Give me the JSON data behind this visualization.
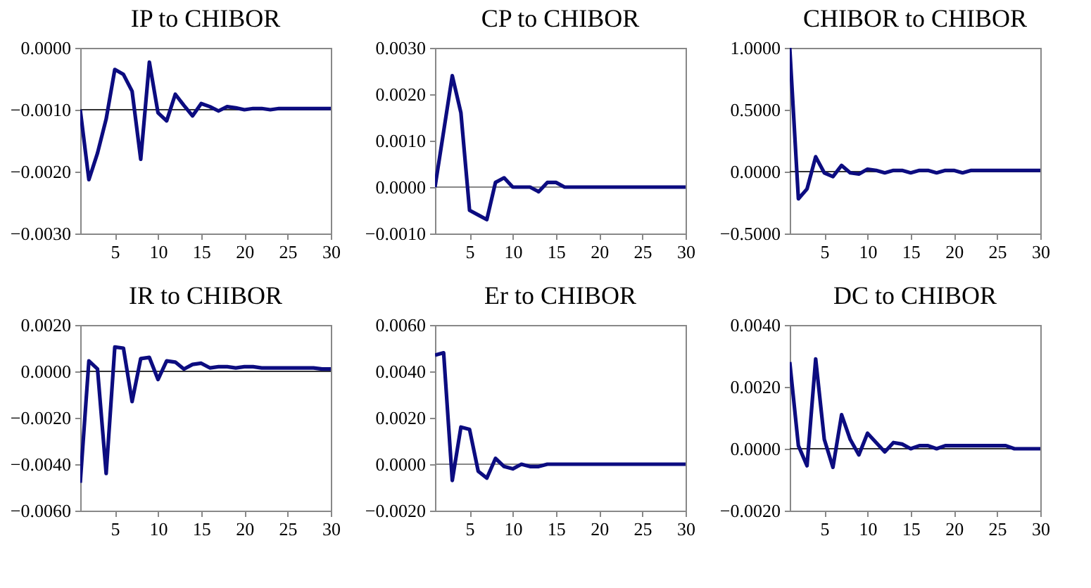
{
  "chart_data": [
    {
      "type": "line",
      "title": "IP to CHIBOR",
      "x": [
        1,
        2,
        3,
        4,
        5,
        6,
        7,
        8,
        9,
        10,
        11,
        12,
        13,
        14,
        15,
        16,
        17,
        18,
        19,
        20,
        21,
        22,
        23,
        24,
        25,
        26,
        27,
        28,
        29,
        30
      ],
      "xlim": [
        1,
        30
      ],
      "xticks": [
        5,
        10,
        15,
        20,
        25,
        30
      ],
      "ylim": [
        -0.003,
        0
      ],
      "yticks": [
        {
          "value": -0.003,
          "label": "−0.0030"
        },
        {
          "value": -0.002,
          "label": "−0.0020"
        },
        {
          "value": -0.001,
          "label": "−0.0010"
        },
        {
          "value": 0,
          "label": "0.0000"
        }
      ],
      "ref_lines": [
        {
          "axis": "y",
          "value": -0.001,
          "color": "#333333"
        }
      ],
      "grid": false,
      "series": [
        {
          "color": "#0c0c80",
          "values": [
            -0.001,
            -0.00213,
            -0.0017,
            -0.00115,
            -0.00035,
            -0.00043,
            -0.0007,
            -0.0018,
            -0.00023,
            -0.00105,
            -0.00118,
            -0.00075,
            -0.00093,
            -0.0011,
            -0.0009,
            -0.00095,
            -0.00102,
            -0.00095,
            -0.00097,
            -0.001,
            -0.00098,
            -0.00098,
            -0.001,
            -0.00098,
            -0.00098,
            -0.00098,
            -0.00098,
            -0.00098,
            -0.00098,
            -0.00098
          ]
        }
      ]
    },
    {
      "type": "line",
      "title": "CP to CHIBOR",
      "x": [
        1,
        2,
        3,
        4,
        5,
        6,
        7,
        8,
        9,
        10,
        11,
        12,
        13,
        14,
        15,
        16,
        17,
        18,
        19,
        20,
        21,
        22,
        23,
        24,
        25,
        26,
        27,
        28,
        29,
        30
      ],
      "xlim": [
        1,
        30
      ],
      "xticks": [
        5,
        10,
        15,
        20,
        25,
        30
      ],
      "ylim": [
        -0.001,
        0.003
      ],
      "yticks": [
        {
          "value": -0.001,
          "label": "−0.0010"
        },
        {
          "value": 0,
          "label": "0.0000"
        },
        {
          "value": 0.001,
          "label": "0.0010"
        },
        {
          "value": 0.002,
          "label": "0.0020"
        },
        {
          "value": 0.003,
          "label": "0.0030"
        }
      ],
      "ref_lines": [
        {
          "axis": "y",
          "value": 0,
          "color": "#888888"
        }
      ],
      "grid": false,
      "series": [
        {
          "color": "#0c0c80",
          "values": [
            0,
            0.0012,
            0.0024,
            0.0016,
            -0.0005,
            -0.0006,
            -0.0007,
            0.0001,
            0.0002,
            0,
            0,
            0,
            -0.0001,
            0.0001,
            0.0001,
            0,
            0,
            0,
            0,
            0,
            0,
            0,
            0,
            0,
            0,
            0,
            0,
            0,
            0,
            0
          ]
        }
      ]
    },
    {
      "type": "line",
      "title": "CHIBOR to CHIBOR",
      "x": [
        1,
        2,
        3,
        4,
        5,
        6,
        7,
        8,
        9,
        10,
        11,
        12,
        13,
        14,
        15,
        16,
        17,
        18,
        19,
        20,
        21,
        22,
        23,
        24,
        25,
        26,
        27,
        28,
        29,
        30
      ],
      "xlim": [
        1,
        30
      ],
      "xticks": [
        5,
        10,
        15,
        20,
        25,
        30
      ],
      "ylim": [
        -0.5,
        1
      ],
      "yticks": [
        {
          "value": -0.5,
          "label": "−0.5000"
        },
        {
          "value": 0,
          "label": "0.0000"
        },
        {
          "value": 0.5,
          "label": "0.5000"
        },
        {
          "value": 1,
          "label": "1.0000"
        }
      ],
      "ref_lines": [
        {
          "axis": "y",
          "value": 0,
          "color": "#333333"
        }
      ],
      "grid": false,
      "series": [
        {
          "color": "#0c0c80",
          "values": [
            1,
            -0.22,
            -0.14,
            0.12,
            -0.01,
            -0.04,
            0.05,
            -0.01,
            -0.02,
            0.02,
            0.01,
            -0.01,
            0.01,
            0.01,
            -0.01,
            0.01,
            0.01,
            -0.01,
            0.01,
            0.01,
            -0.01,
            0.01,
            0.01,
            0.01,
            0.01,
            0.01,
            0.01,
            0.01,
            0.01,
            0.01
          ]
        }
      ]
    },
    {
      "type": "line",
      "title": "IR to CHIBOR",
      "x": [
        1,
        2,
        3,
        4,
        5,
        6,
        7,
        8,
        9,
        10,
        11,
        12,
        13,
        14,
        15,
        16,
        17,
        18,
        19,
        20,
        21,
        22,
        23,
        24,
        25,
        26,
        27,
        28,
        29,
        30
      ],
      "xlim": [
        1,
        30
      ],
      "xticks": [
        5,
        10,
        15,
        20,
        25,
        30
      ],
      "ylim": [
        -0.006,
        0.002
      ],
      "yticks": [
        {
          "value": -0.006,
          "label": "−0.0060"
        },
        {
          "value": -0.004,
          "label": "−0.0040"
        },
        {
          "value": -0.002,
          "label": "−0.0020"
        },
        {
          "value": 0,
          "label": "0.0000"
        },
        {
          "value": 0.002,
          "label": "0.0020"
        }
      ],
      "ref_lines": [
        {
          "axis": "y",
          "value": 0,
          "color": "#333333"
        }
      ],
      "grid": false,
      "series": [
        {
          "color": "#0c0c80",
          "values": [
            -0.0048,
            0.00045,
            0.0001,
            -0.0044,
            0.00105,
            0.001,
            -0.0013,
            0.00055,
            0.0006,
            -0.00035,
            0.00045,
            0.0004,
            0.0001,
            0.0003,
            0.00035,
            0.00015,
            0.0002,
            0.0002,
            0.00015,
            0.0002,
            0.0002,
            0.00015,
            0.00015,
            0.00015,
            0.00015,
            0.00015,
            0.00015,
            0.00015,
            0.0001,
            0.0001
          ]
        }
      ]
    },
    {
      "type": "line",
      "title": "Er to CHIBOR",
      "x": [
        1,
        2,
        3,
        4,
        5,
        6,
        7,
        8,
        9,
        10,
        11,
        12,
        13,
        14,
        15,
        16,
        17,
        18,
        19,
        20,
        21,
        22,
        23,
        24,
        25,
        26,
        27,
        28,
        29,
        30
      ],
      "xlim": [
        1,
        30
      ],
      "xticks": [
        5,
        10,
        15,
        20,
        25,
        30
      ],
      "ylim": [
        -0.002,
        0.006
      ],
      "yticks": [
        {
          "value": -0.002,
          "label": "−0.0020"
        },
        {
          "value": 0,
          "label": "0.0000"
        },
        {
          "value": 0.002,
          "label": "0.0020"
        },
        {
          "value": 0.004,
          "label": "0.0040"
        },
        {
          "value": 0.006,
          "label": "0.0060"
        }
      ],
      "ref_lines": [
        {
          "axis": "y",
          "value": 0,
          "color": "#888888"
        }
      ],
      "grid": false,
      "series": [
        {
          "color": "#0c0c80",
          "values": [
            0.0047,
            0.0048,
            -0.0007,
            0.0016,
            0.0015,
            -0.0003,
            -0.0006,
            0.00025,
            -0.0001,
            -0.0002,
            0,
            -0.0001,
            -0.0001,
            0,
            0,
            0,
            0,
            0,
            0,
            0,
            0,
            0,
            0,
            0,
            0,
            0,
            0,
            0,
            0,
            0
          ]
        }
      ]
    },
    {
      "type": "line",
      "title": "DC to CHIBOR",
      "x": [
        1,
        2,
        3,
        4,
        5,
        6,
        7,
        8,
        9,
        10,
        11,
        12,
        13,
        14,
        15,
        16,
        17,
        18,
        19,
        20,
        21,
        22,
        23,
        24,
        25,
        26,
        27,
        28,
        29,
        30
      ],
      "xlim": [
        1,
        30
      ],
      "xticks": [
        5,
        10,
        15,
        20,
        25,
        30
      ],
      "ylim": [
        -0.002,
        0.004
      ],
      "yticks": [
        {
          "value": -0.002,
          "label": "−0.0020"
        },
        {
          "value": 0,
          "label": "0.0000"
        },
        {
          "value": 0.002,
          "label": "0.0020"
        },
        {
          "value": 0.004,
          "label": "0.0040"
        }
      ],
      "ref_lines": [
        {
          "axis": "y",
          "value": 0,
          "color": "#333333"
        }
      ],
      "grid": false,
      "series": [
        {
          "color": "#0c0c80",
          "values": [
            0.0028,
            0.0001,
            -0.00055,
            0.0029,
            0.0003,
            -0.0006,
            0.0011,
            0.0003,
            -0.0002,
            0.0005,
            0.0002,
            -0.0001,
            0.0002,
            0.00015,
            0,
            0.0001,
            0.0001,
            0,
            0.0001,
            0.0001,
            0.0001,
            0.0001,
            0.0001,
            0.0001,
            0.0001,
            0.0001,
            0,
            0,
            0,
            0
          ]
        }
      ]
    }
  ]
}
